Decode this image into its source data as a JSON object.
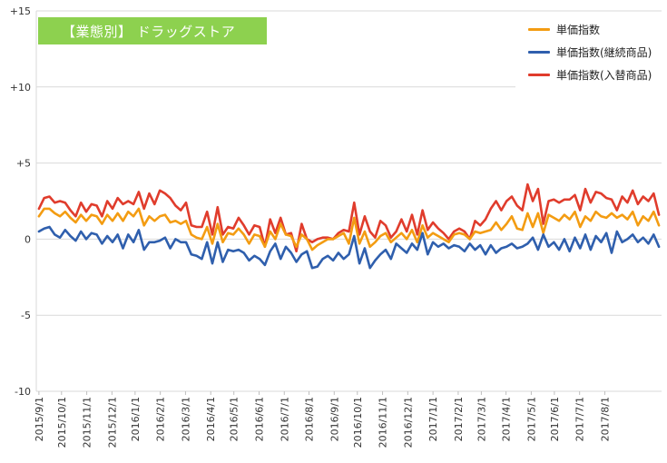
{
  "chart_data": {
    "type": "line",
    "title_badge": "【業態別】 ドラッグストア",
    "ylim": [
      -10,
      15
    ],
    "yticks": [
      -10,
      -5,
      0,
      5,
      10,
      15
    ],
    "ytick_labels": [
      "-10",
      "-5",
      "0",
      "+5",
      "+10",
      "+15"
    ],
    "x_count": 119,
    "xtick_labels": [
      "2015/9/1",
      "2015/10/1",
      "2015/11/1",
      "2015/12/1",
      "2016/1/1",
      "2016/2/1",
      "2016/3/1",
      "2016/4/1",
      "2016/5/1",
      "2016/6/1",
      "2016/7/1",
      "2016/8/1",
      "2016/9/1",
      "2016/10/1",
      "2016/11/1",
      "2016/12/1",
      "2017/1/1",
      "2017/2/1",
      "2017/3/1",
      "2017/4/1",
      "2017/5/1",
      "2017/6/1",
      "2017/7/1",
      "2017/8/1"
    ],
    "xtick_index": [
      0,
      4.3,
      9.1,
      13.9,
      18.3,
      23.1,
      27.9,
      32.7,
      37.1,
      41.9,
      46.7,
      51.4,
      56.2,
      60.6,
      65.4,
      70.2,
      75.0,
      79.8,
      84.2,
      88.9,
      93.7,
      98.1,
      102.9,
      107.7
    ],
    "grid": true,
    "legend_position": "top-right",
    "series": [
      {
        "name": "単価指数",
        "color": "#f39c12",
        "values": [
          1.5,
          2.0,
          2.0,
          1.7,
          1.5,
          1.8,
          1.4,
          1.1,
          1.6,
          1.2,
          1.6,
          1.5,
          1.0,
          1.6,
          1.2,
          1.7,
          1.2,
          1.8,
          1.5,
          2.0,
          0.9,
          1.5,
          1.2,
          1.5,
          1.6,
          1.1,
          1.2,
          1.0,
          1.2,
          0.3,
          0.1,
          0.0,
          0.8,
          -0.3,
          1.0,
          -0.2,
          0.4,
          0.3,
          0.7,
          0.3,
          -0.3,
          0.3,
          0.2,
          -0.5,
          0.5,
          0.0,
          1.0,
          0.3,
          0.2,
          -0.5,
          0.3,
          0.0,
          -0.7,
          -0.4,
          -0.2,
          0.0,
          0.0,
          0.2,
          0.4,
          -0.3,
          1.4,
          -0.3,
          0.5,
          -0.5,
          -0.2,
          0.2,
          0.4,
          -0.2,
          0.1,
          0.4,
          0.0,
          0.6,
          -0.2,
          0.9,
          0.1,
          0.4,
          0.2,
          0.0,
          -0.2,
          0.3,
          0.4,
          0.3,
          0.0,
          0.5,
          0.4,
          0.5,
          0.6,
          1.1,
          0.6,
          1.0,
          1.5,
          0.7,
          0.6,
          1.7,
          0.8,
          1.7,
          0.4,
          1.6,
          1.4,
          1.2,
          1.6,
          1.3,
          1.8,
          0.8,
          1.5,
          1.2,
          1.8,
          1.5,
          1.4,
          1.7,
          1.4,
          1.6,
          1.3,
          1.8,
          0.9,
          1.5,
          1.2,
          1.8,
          0.9
        ]
      },
      {
        "name": "単価指数(継続商品)",
        "color": "#2f5fad",
        "values": [
          0.5,
          0.7,
          0.8,
          0.3,
          0.1,
          0.6,
          0.2,
          -0.1,
          0.5,
          0.0,
          0.4,
          0.3,
          -0.3,
          0.2,
          -0.2,
          0.3,
          -0.6,
          0.3,
          -0.2,
          0.6,
          -0.7,
          -0.2,
          -0.2,
          -0.1,
          0.1,
          -0.6,
          0.0,
          -0.2,
          -0.2,
          -1.0,
          -1.1,
          -1.3,
          -0.2,
          -1.6,
          -0.2,
          -1.5,
          -0.7,
          -0.8,
          -0.7,
          -0.9,
          -1.4,
          -1.1,
          -1.3,
          -1.7,
          -0.8,
          -0.3,
          -1.3,
          -0.5,
          -0.9,
          -1.5,
          -1.0,
          -0.8,
          -1.9,
          -1.8,
          -1.3,
          -1.1,
          -1.4,
          -0.9,
          -1.3,
          -1.0,
          0.2,
          -1.6,
          -0.6,
          -1.9,
          -1.4,
          -1.0,
          -0.7,
          -1.3,
          -0.3,
          -0.6,
          -0.9,
          -0.3,
          -0.7,
          0.4,
          -1.0,
          -0.2,
          -0.5,
          -0.3,
          -0.6,
          -0.4,
          -0.5,
          -0.8,
          -0.3,
          -0.7,
          -0.4,
          -1.0,
          -0.4,
          -0.9,
          -0.6,
          -0.5,
          -0.3,
          -0.6,
          -0.5,
          -0.3,
          0.1,
          -0.7,
          0.3,
          -0.5,
          -0.2,
          -0.7,
          0.0,
          -0.8,
          0.1,
          -0.6,
          0.3,
          -0.7,
          0.2,
          -0.2,
          0.4,
          -0.9,
          0.5,
          -0.2,
          0.0,
          0.3,
          -0.2,
          0.1,
          -0.3,
          0.3,
          -0.5
        ]
      },
      {
        "name": "単価指数(入替商品)",
        "color": "#e03c2c",
        "values": [
          2.0,
          2.7,
          2.8,
          2.4,
          2.5,
          2.4,
          1.9,
          1.5,
          2.4,
          1.8,
          2.3,
          2.2,
          1.5,
          2.5,
          2.0,
          2.7,
          2.3,
          2.5,
          2.3,
          3.1,
          2.0,
          3.0,
          2.3,
          3.2,
          3.0,
          2.7,
          2.2,
          1.9,
          2.4,
          0.9,
          0.8,
          0.8,
          1.8,
          0.3,
          2.1,
          0.3,
          0.8,
          0.7,
          1.4,
          0.9,
          0.3,
          0.9,
          0.8,
          -0.5,
          1.3,
          0.4,
          1.4,
          0.3,
          0.4,
          -0.8,
          1.0,
          0.0,
          -0.2,
          0.0,
          0.1,
          0.1,
          0.0,
          0.4,
          0.6,
          0.5,
          2.4,
          0.3,
          1.5,
          0.5,
          0.1,
          1.2,
          0.9,
          0.1,
          0.5,
          1.3,
          0.5,
          1.6,
          0.3,
          1.9,
          0.6,
          1.1,
          0.7,
          0.4,
          0.0,
          0.5,
          0.7,
          0.5,
          0.0,
          1.2,
          0.9,
          1.3,
          2.0,
          2.5,
          1.9,
          2.5,
          2.8,
          2.2,
          1.9,
          3.6,
          2.5,
          3.3,
          1.0,
          2.5,
          2.6,
          2.4,
          2.6,
          2.6,
          2.9,
          1.9,
          3.3,
          2.4,
          3.1,
          3.0,
          2.7,
          2.6,
          1.9,
          2.8,
          2.4,
          3.2,
          2.3,
          2.8,
          2.5,
          3.0,
          1.6
        ]
      }
    ]
  }
}
